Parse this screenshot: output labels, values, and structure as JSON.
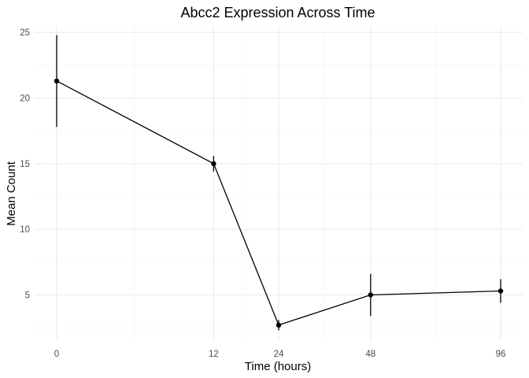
{
  "chart_data": {
    "type": "line",
    "title": "Abcc2 Expression Across Time",
    "xlabel": "Time (hours)",
    "ylabel": "Mean Count",
    "x": [
      0,
      12,
      24,
      48,
      96
    ],
    "x_tick_labels": [
      "0",
      "12",
      "24",
      "48",
      "96"
    ],
    "x_scale": "sqrt",
    "y": [
      21.3,
      15.0,
      2.7,
      5.0,
      5.3
    ],
    "error_low": [
      17.8,
      14.4,
      2.3,
      3.4,
      4.4
    ],
    "error_high": [
      24.8,
      15.6,
      3.1,
      6.6,
      6.2
    ],
    "y_ticks": [
      5,
      10,
      15,
      20,
      25
    ],
    "ylim": [
      1.55,
      25.55
    ],
    "grid": true,
    "style": {
      "line_color": "#000000",
      "point_color": "#000000"
    }
  }
}
